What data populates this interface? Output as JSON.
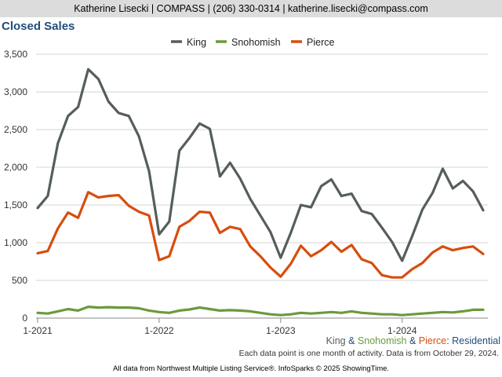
{
  "header": {
    "contact": "Katherine Lisecki | COMPASS | (206) 330-0314 | katherine.lisecki@compass.com"
  },
  "chart_data": {
    "type": "line",
    "title": "Closed Sales",
    "xlabel": "",
    "ylabel": "",
    "ylim": [
      0,
      3500
    ],
    "yticks": [
      "0",
      "500",
      "1,000",
      "1,500",
      "2,000",
      "2,500",
      "3,000",
      "3,500"
    ],
    "ytick_values": [
      0,
      500,
      1000,
      1500,
      2000,
      2500,
      3000,
      3500
    ],
    "xticks": [
      "1-2021",
      "1-2022",
      "1-2023",
      "1-2024"
    ],
    "x": [
      "1-2021",
      "2-2021",
      "3-2021",
      "4-2021",
      "5-2021",
      "6-2021",
      "7-2021",
      "8-2021",
      "9-2021",
      "10-2021",
      "11-2021",
      "12-2021",
      "1-2022",
      "2-2022",
      "3-2022",
      "4-2022",
      "5-2022",
      "6-2022",
      "7-2022",
      "8-2022",
      "9-2022",
      "10-2022",
      "11-2022",
      "12-2022",
      "1-2023",
      "2-2023",
      "3-2023",
      "4-2023",
      "5-2023",
      "6-2023",
      "7-2023",
      "8-2023",
      "9-2023",
      "10-2023",
      "11-2023",
      "12-2023",
      "1-2024",
      "2-2024",
      "3-2024",
      "4-2024",
      "5-2024",
      "6-2024",
      "7-2024",
      "8-2024",
      "9-2024"
    ],
    "grid": true,
    "legend_position": "top-center",
    "series": [
      {
        "name": "King",
        "color": "#555e5b",
        "values": [
          1460,
          1620,
          2320,
          2680,
          2800,
          3300,
          3170,
          2870,
          2720,
          2680,
          2410,
          1950,
          1110,
          1280,
          2220,
          2390,
          2580,
          2510,
          1880,
          2060,
          1850,
          1580,
          1360,
          1140,
          800,
          1130,
          1500,
          1470,
          1750,
          1840,
          1620,
          1650,
          1420,
          1380,
          1200,
          1010,
          760,
          1090,
          1440,
          1660,
          1980,
          1720,
          1820,
          1680,
          1430
        ]
      },
      {
        "name": "Snohomish",
        "color": "#6a9a3c",
        "values": [
          70,
          60,
          90,
          120,
          100,
          150,
          140,
          145,
          140,
          140,
          130,
          100,
          80,
          70,
          100,
          115,
          140,
          120,
          100,
          105,
          100,
          90,
          70,
          50,
          40,
          50,
          70,
          60,
          70,
          80,
          70,
          90,
          70,
          60,
          50,
          50,
          40,
          50,
          60,
          70,
          80,
          75,
          90,
          110,
          110
        ]
      },
      {
        "name": "Pierce",
        "color": "#d84d0d",
        "values": [
          860,
          890,
          1190,
          1400,
          1330,
          1670,
          1600,
          1620,
          1630,
          1490,
          1410,
          1360,
          770,
          820,
          1210,
          1290,
          1410,
          1400,
          1130,
          1210,
          1180,
          950,
          820,
          670,
          550,
          720,
          960,
          820,
          900,
          1010,
          880,
          970,
          780,
          730,
          570,
          540,
          540,
          650,
          730,
          870,
          950,
          900,
          930,
          950,
          850
        ]
      }
    ]
  },
  "footer": {
    "legend_king": "King",
    "amp1": " & ",
    "legend_snohomish": "Snohomish",
    "amp2": " & ",
    "legend_pierce": "Pierce",
    "suffix": ": Residential",
    "note": "Each data point is one month of activity. Data is from October 29, 2024.",
    "source": "All data from Northwest Multiple Listing Service®. InfoSparks © 2025 ShowingTime."
  }
}
